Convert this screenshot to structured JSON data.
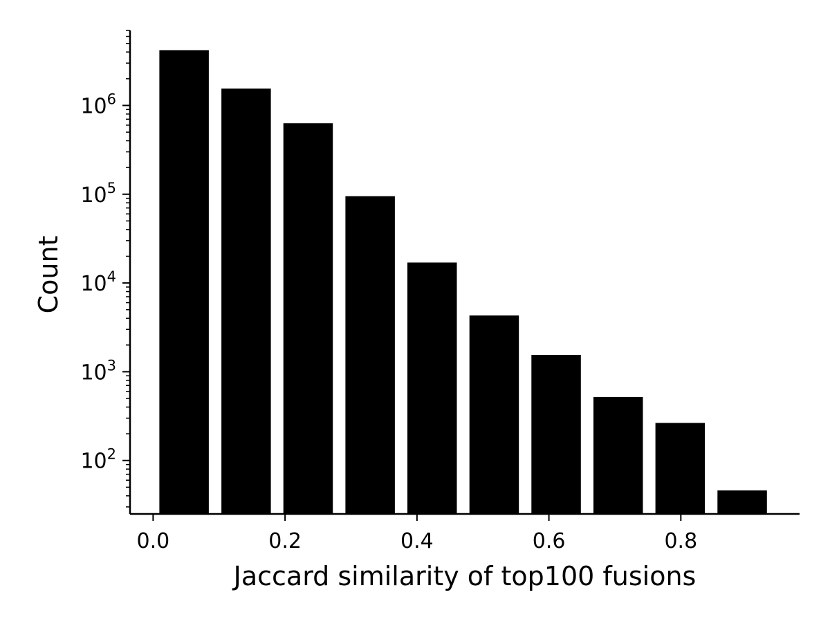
{
  "chart_data": {
    "type": "bar",
    "title": "",
    "xlabel": "Jaccard similarity of top100 fusions",
    "ylabel": "Count",
    "y_scale": "log",
    "ylim": [
      25,
      7000000
    ],
    "xlim": [
      -0.035,
      0.98
    ],
    "bin_width": 0.094,
    "bar_width": 0.075,
    "x_ticks": [
      {
        "value": 0.0,
        "label": "0.0"
      },
      {
        "value": 0.2,
        "label": "0.2"
      },
      {
        "value": 0.4,
        "label": "0.4"
      },
      {
        "value": 0.6,
        "label": "0.6"
      },
      {
        "value": 0.8,
        "label": "0.8"
      }
    ],
    "y_ticks": [
      {
        "value": 100,
        "base": "10",
        "exp": "2"
      },
      {
        "value": 1000,
        "base": "10",
        "exp": "3"
      },
      {
        "value": 10000,
        "base": "10",
        "exp": "4"
      },
      {
        "value": 100000,
        "base": "10",
        "exp": "5"
      },
      {
        "value": 1000000,
        "base": "10",
        "exp": "6"
      }
    ],
    "x": [
      0.047,
      0.141,
      0.235,
      0.329,
      0.423,
      0.517,
      0.611,
      0.705,
      0.799,
      0.893
    ],
    "values": [
      4200000,
      1550000,
      630000,
      95000,
      17000,
      4300,
      1550,
      520,
      265,
      46
    ],
    "bar_color": "#000000",
    "grid": false,
    "legend": "none"
  }
}
